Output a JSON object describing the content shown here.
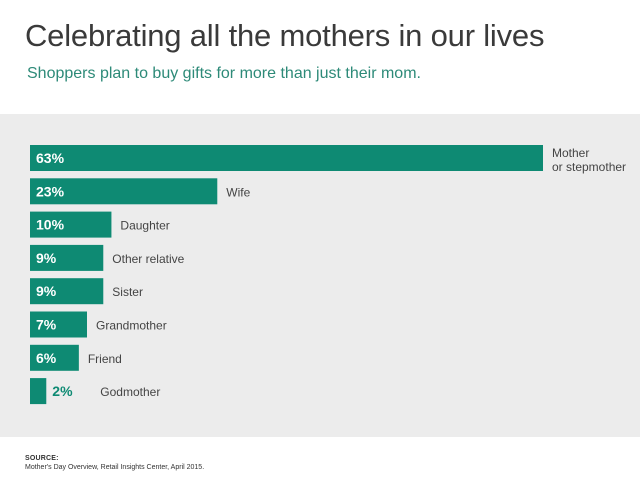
{
  "header": {
    "title": "Celebrating all the mothers in our lives",
    "subtitle": "Shoppers plan to buy gifts for more than just their mom."
  },
  "footer": {
    "source_label": "SOURCE:",
    "source_text": "Mother's Day Overview, Retail Insights Center, April 2015."
  },
  "colors": {
    "bar": "#0e8a73",
    "panel": "#ececec",
    "label_text": "#444444",
    "value_inside": "#ffffff",
    "value_outside": "#0e8a73"
  },
  "chart_data": {
    "type": "bar",
    "orientation": "horizontal",
    "title": "Celebrating all the mothers in our lives",
    "subtitle": "Shoppers plan to buy gifts for more than just their mom.",
    "unit": "%",
    "xlim": [
      0,
      63
    ],
    "categories": [
      [
        "Mother",
        "or stepmother"
      ],
      [
        "Wife"
      ],
      [
        "Daughter"
      ],
      [
        "Other relative"
      ],
      [
        "Sister"
      ],
      [
        "Grandmother"
      ],
      [
        "Friend"
      ],
      [
        "Godmother"
      ]
    ],
    "values": [
      63,
      23,
      10,
      9,
      9,
      7,
      6,
      2
    ],
    "value_labels": [
      "63%",
      "23%",
      "10%",
      "9%",
      "9%",
      "7%",
      "6%",
      "2%"
    ]
  }
}
